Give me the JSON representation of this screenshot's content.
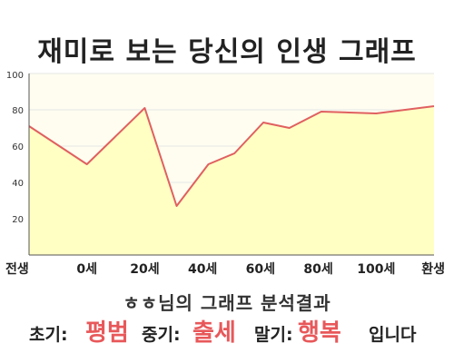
{
  "title": "재미로 보는 당신의 인생 그래프",
  "colors": {
    "plot_bg": "#fffdf0",
    "area_fill": "#ffffc4",
    "line": "#e06060",
    "grid": "#e6e6e6",
    "axis": "#555555",
    "highlight": "#e8585a"
  },
  "chart_data": {
    "type": "area",
    "title": "재미로 보는 당신의 인생 그래프",
    "xlabel": "",
    "ylabel": "",
    "ylim": [
      0,
      100
    ],
    "yticks": [
      20,
      40,
      60,
      80,
      100
    ],
    "grid": true,
    "legend": "none",
    "x_tick_labels": [
      "전생",
      "0세",
      "20세",
      "40세",
      "60세",
      "80세",
      "100세",
      "환생"
    ],
    "points": [
      {
        "x": 0,
        "y": 71
      },
      {
        "x": 1,
        "y": 50
      },
      {
        "x": 2,
        "y": 81
      },
      {
        "x": 2.55,
        "y": 27
      },
      {
        "x": 3.1,
        "y": 50
      },
      {
        "x": 3.55,
        "y": 56
      },
      {
        "x": 4.05,
        "y": 73
      },
      {
        "x": 4.5,
        "y": 70
      },
      {
        "x": 5.05,
        "y": 79
      },
      {
        "x": 6,
        "y": 78
      },
      {
        "x": 7,
        "y": 82
      }
    ]
  },
  "analysis": {
    "title": "ㅎㅎ님의 그래프 분석결과",
    "early_label": "초기:",
    "early_value": "평범",
    "middle_label": "중기:",
    "middle_value": "출세",
    "late_label": "말기:",
    "late_value": "행복",
    "ending": "입니다"
  }
}
